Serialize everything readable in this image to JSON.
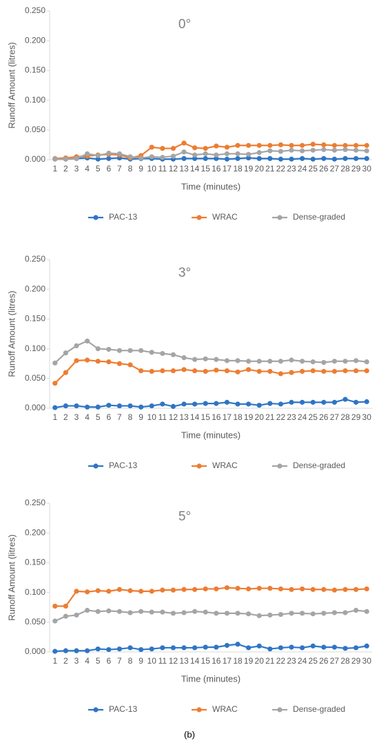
{
  "chart_data": [
    {
      "type": "line",
      "title": "0°",
      "x_label": "Time (minutes)",
      "y_label": "Runoff Amount (litres)",
      "categories": [
        "1",
        "2",
        "3",
        "4",
        "5",
        "6",
        "7",
        "8",
        "9",
        "10",
        "11",
        "12",
        "13",
        "14",
        "15",
        "16",
        "17",
        "18",
        "19",
        "20",
        "21",
        "22",
        "23",
        "24",
        "25",
        "26",
        "27",
        "28",
        "29",
        "30"
      ],
      "ylim": [
        0,
        0.25
      ],
      "yticks": [
        {
          "value": 0,
          "label": "0.000"
        },
        {
          "value": 0.05,
          "label": "0.050"
        },
        {
          "value": 0.1,
          "label": "0.100"
        },
        {
          "value": 0.15,
          "label": "0.150"
        },
        {
          "value": 0.2,
          "label": "0.200"
        },
        {
          "value": 0.25,
          "label": "0.250"
        }
      ],
      "grid": false,
      "legend": "bottom",
      "series": [
        {
          "name": "PAC-13",
          "color": "#2e75c6",
          "values": [
            0.001,
            0.001,
            0.002,
            0.003,
            0.001,
            0.002,
            0.003,
            0.001,
            0.002,
            0.002,
            0.001,
            0.001,
            0.002,
            0.002,
            0.002,
            0.002,
            0.001,
            0.002,
            0.003,
            0.002,
            0.002,
            0.001,
            0.001,
            0.002,
            0.001,
            0.002,
            0.001,
            0.002,
            0.002,
            0.002
          ]
        },
        {
          "name": "WRAC",
          "color": "#ed7d31",
          "values": [
            0.002,
            0.003,
            0.005,
            0.006,
            0.008,
            0.009,
            0.008,
            0.003,
            0.007,
            0.021,
            0.019,
            0.019,
            0.028,
            0.02,
            0.019,
            0.023,
            0.021,
            0.024,
            0.024,
            0.024,
            0.024,
            0.025,
            0.024,
            0.024,
            0.026,
            0.025,
            0.024,
            0.024,
            0.024,
            0.024
          ]
        },
        {
          "name": "Dense-graded",
          "color": "#a5a5a5",
          "values": [
            0.001,
            0.001,
            0.002,
            0.01,
            0.007,
            0.011,
            0.01,
            0.005,
            0.003,
            0.005,
            0.004,
            0.006,
            0.013,
            0.008,
            0.01,
            0.008,
            0.01,
            0.01,
            0.009,
            0.012,
            0.015,
            0.014,
            0.016,
            0.015,
            0.016,
            0.017,
            0.016,
            0.017,
            0.016,
            0.015
          ]
        }
      ]
    },
    {
      "type": "line",
      "title": "3°",
      "x_label": "Time (minutes)",
      "y_label": "Runoff Amount (litres)",
      "categories": [
        "1",
        "2",
        "3",
        "4",
        "5",
        "6",
        "7",
        "8",
        "9",
        "10",
        "11",
        "12",
        "13",
        "14",
        "15",
        "16",
        "17",
        "18",
        "19",
        "20",
        "21",
        "22",
        "23",
        "24",
        "25",
        "26",
        "27",
        "28",
        "29",
        "30"
      ],
      "ylim": [
        0,
        0.25
      ],
      "yticks": [
        {
          "value": 0,
          "label": "0.000"
        },
        {
          "value": 0.05,
          "label": "0.050"
        },
        {
          "value": 0.1,
          "label": "0.100"
        },
        {
          "value": 0.15,
          "label": "0.150"
        },
        {
          "value": 0.2,
          "label": "0.200"
        },
        {
          "value": 0.25,
          "label": "0.250"
        }
      ],
      "grid": false,
      "legend": "bottom",
      "series": [
        {
          "name": "PAC-13",
          "color": "#2e75c6",
          "values": [
            0.001,
            0.004,
            0.004,
            0.002,
            0.002,
            0.005,
            0.004,
            0.004,
            0.002,
            0.004,
            0.007,
            0.003,
            0.007,
            0.007,
            0.008,
            0.008,
            0.01,
            0.007,
            0.007,
            0.005,
            0.008,
            0.007,
            0.01,
            0.01,
            0.01,
            0.01,
            0.01,
            0.015,
            0.01,
            0.011
          ]
        },
        {
          "name": "WRAC",
          "color": "#ed7d31",
          "values": [
            0.042,
            0.06,
            0.08,
            0.081,
            0.079,
            0.078,
            0.075,
            0.073,
            0.063,
            0.062,
            0.063,
            0.063,
            0.065,
            0.063,
            0.062,
            0.064,
            0.063,
            0.061,
            0.065,
            0.062,
            0.062,
            0.058,
            0.06,
            0.062,
            0.063,
            0.062,
            0.062,
            0.063,
            0.063,
            0.063
          ]
        },
        {
          "name": "Dense-graded",
          "color": "#a5a5a5",
          "values": [
            0.076,
            0.093,
            0.105,
            0.113,
            0.1,
            0.099,
            0.097,
            0.097,
            0.097,
            0.094,
            0.092,
            0.09,
            0.085,
            0.082,
            0.083,
            0.082,
            0.08,
            0.08,
            0.079,
            0.079,
            0.079,
            0.079,
            0.081,
            0.079,
            0.078,
            0.077,
            0.079,
            0.079,
            0.08,
            0.078
          ]
        }
      ]
    },
    {
      "type": "line",
      "title": "5°",
      "x_label": "Time (minutes)",
      "y_label": "Runoff Amount (litres)",
      "categories": [
        "1",
        "2",
        "3",
        "4",
        "5",
        "6",
        "7",
        "8",
        "9",
        "10",
        "11",
        "12",
        "13",
        "14",
        "15",
        "16",
        "17",
        "18",
        "19",
        "20",
        "21",
        "22",
        "23",
        "24",
        "25",
        "26",
        "27",
        "28",
        "29",
        "30"
      ],
      "ylim": [
        0,
        0.25
      ],
      "yticks": [
        {
          "value": 0,
          "label": "0.000"
        },
        {
          "value": 0.05,
          "label": "0.050"
        },
        {
          "value": 0.1,
          "label": "0.100"
        },
        {
          "value": 0.15,
          "label": "0.150"
        },
        {
          "value": 0.2,
          "label": "0.200"
        },
        {
          "value": 0.25,
          "label": "0.250"
        }
      ],
      "grid": false,
      "legend": "bottom",
      "series": [
        {
          "name": "PAC-13",
          "color": "#2e75c6",
          "values": [
            0.001,
            0.002,
            0.002,
            0.002,
            0.005,
            0.004,
            0.005,
            0.007,
            0.004,
            0.005,
            0.007,
            0.007,
            0.007,
            0.007,
            0.008,
            0.008,
            0.011,
            0.013,
            0.007,
            0.01,
            0.005,
            0.007,
            0.008,
            0.007,
            0.01,
            0.008,
            0.008,
            0.006,
            0.007,
            0.01
          ]
        },
        {
          "name": "WRAC",
          "color": "#ed7d31",
          "values": [
            0.077,
            0.077,
            0.102,
            0.101,
            0.103,
            0.102,
            0.105,
            0.103,
            0.102,
            0.102,
            0.104,
            0.104,
            0.105,
            0.105,
            0.106,
            0.106,
            0.108,
            0.107,
            0.106,
            0.107,
            0.107,
            0.106,
            0.105,
            0.106,
            0.105,
            0.105,
            0.104,
            0.105,
            0.105,
            0.106
          ]
        },
        {
          "name": "Dense-graded",
          "color": "#a5a5a5",
          "values": [
            0.052,
            0.06,
            0.062,
            0.07,
            0.068,
            0.069,
            0.068,
            0.066,
            0.068,
            0.067,
            0.067,
            0.065,
            0.066,
            0.068,
            0.067,
            0.065,
            0.065,
            0.065,
            0.064,
            0.061,
            0.062,
            0.063,
            0.065,
            0.065,
            0.064,
            0.065,
            0.066,
            0.066,
            0.07,
            0.068
          ]
        }
      ]
    }
  ],
  "caption": "(b)"
}
